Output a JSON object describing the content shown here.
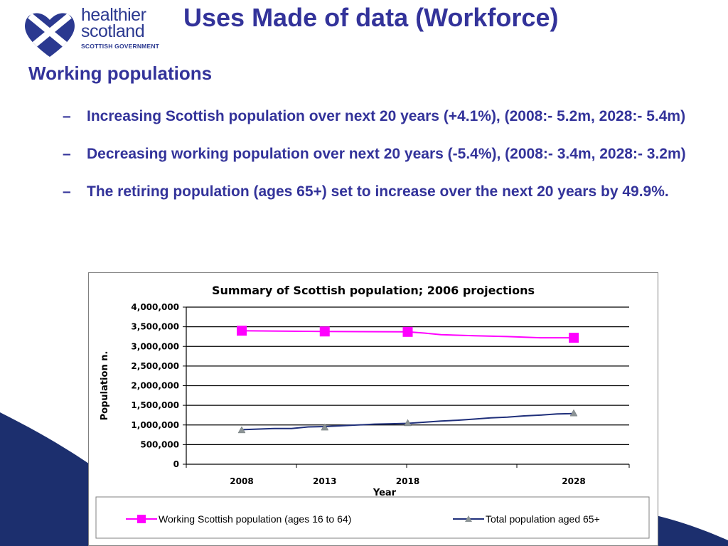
{
  "logo": {
    "line1": "healthier",
    "line2": "scotland",
    "sub": "SCOTTISH GOVERNMENT"
  },
  "slide": {
    "title": "Uses Made of data (Workforce)",
    "heading": "Working populations",
    "bullets": [
      {
        "dash": "–",
        "text": "Increasing Scottish population over next 20 years (+4.1%), (2008:- 5.2m, 2028:- 5.4m)"
      },
      {
        "dash": "–",
        "text": "Decreasing working population over next 20 years (-5.4%), (2008:- 3.4m, 2028:- 3.2m)"
      },
      {
        "dash": "–",
        "text": "The retiring population (ages 65+) set to increase over the next 20 years by 49.9%."
      }
    ]
  },
  "colors": {
    "title": "#33339a",
    "background_swoosh": "#1c2f6e",
    "working_series": "#ff00ff",
    "retired_series": "#1f2f7a"
  },
  "chart_data": {
    "type": "line",
    "title": "Summary of Scottish population; 2006 projections",
    "xlabel": "Year",
    "ylabel": "Population n.",
    "categories": [
      "2008",
      "2013",
      "2018",
      "2028"
    ],
    "x": [
      2008,
      2013,
      2018,
      2028
    ],
    "ylim": [
      0,
      4000000
    ],
    "yticks": [
      0,
      500000,
      1000000,
      1500000,
      2000000,
      2500000,
      3000000,
      3500000,
      4000000
    ],
    "ytick_labels": [
      "0",
      "500,000",
      "1,000,000",
      "1,500,000",
      "2,000,000",
      "2,500,000",
      "3,000,000",
      "3,500,000",
      "4,000,000"
    ],
    "grid": "horizontal",
    "legend_position": "bottom",
    "series": [
      {
        "name": "Working Scottish population (ages 16 to 64)",
        "marker": "square",
        "color": "#ff00ff",
        "values": [
          3400000,
          3380000,
          3370000,
          3220000
        ],
        "line": [
          [
            2008,
            3400000
          ],
          [
            2013,
            3380000
          ],
          [
            2018,
            3370000
          ],
          [
            2019,
            3340000
          ],
          [
            2020,
            3300000
          ],
          [
            2022,
            3270000
          ],
          [
            2024,
            3250000
          ],
          [
            2026,
            3220000
          ],
          [
            2028,
            3220000
          ]
        ]
      },
      {
        "name": "Total population aged 65+",
        "marker": "triangle",
        "color": "#1f2f7a",
        "values": [
          870000,
          940000,
          1050000,
          1300000
        ],
        "line": [
          [
            2008,
            880000
          ],
          [
            2010,
            910000
          ],
          [
            2011,
            910000
          ],
          [
            2012,
            950000
          ],
          [
            2013,
            960000
          ],
          [
            2014,
            980000
          ],
          [
            2015,
            1000000
          ],
          [
            2016,
            1020000
          ],
          [
            2017,
            1030000
          ],
          [
            2018,
            1040000
          ],
          [
            2019,
            1070000
          ],
          [
            2020,
            1100000
          ],
          [
            2021,
            1120000
          ],
          [
            2022,
            1150000
          ],
          [
            2023,
            1180000
          ],
          [
            2024,
            1200000
          ],
          [
            2025,
            1230000
          ],
          [
            2026,
            1250000
          ],
          [
            2027,
            1280000
          ],
          [
            2028,
            1290000
          ]
        ]
      }
    ]
  }
}
